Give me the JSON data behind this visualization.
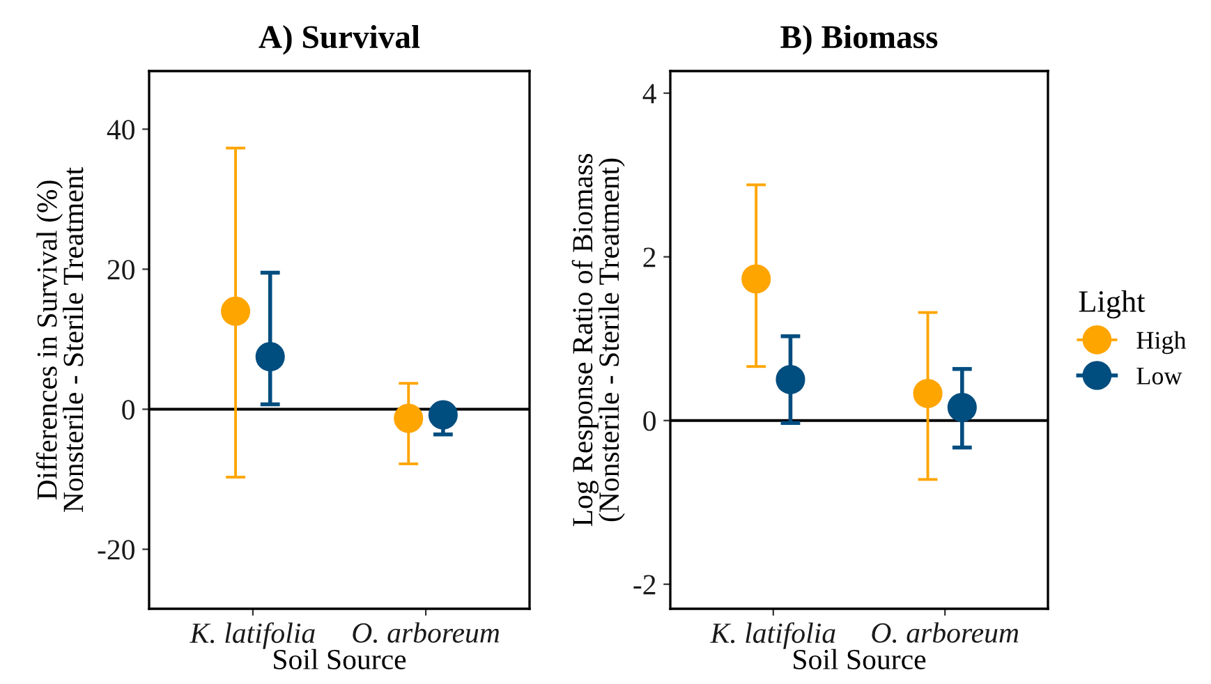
{
  "chart_data": [
    {
      "type": "scatter",
      "title": "A) Survival",
      "xlabel": "Soil Source",
      "ylabel": "Differences in Survival (%)\nNonsterile - Sterile Treatment",
      "categories": [
        "K. latifolia",
        "O. arboreum"
      ],
      "ylim": [
        -28.5,
        48.3
      ],
      "yticks": [
        {
          "value": -20,
          "label": "-20"
        },
        0,
        20,
        40
      ],
      "marker": "circle",
      "grid": false,
      "series": [
        {
          "color": "#ffa500",
          "values": [
            14,
            -1.3
          ],
          "errors": [
            [
              -9.7,
              37.3
            ],
            [
              -7.8,
              3.7
            ]
          ]
        },
        {
          "color": "#004d7f",
          "values": [
            7.5,
            -0.8
          ],
          "errors": [
            [
              0.7,
              19.5
            ],
            [
              -3.6,
              -0.8
            ]
          ]
        }
      ],
      "ref_lines": [
        {
          "axis": "y",
          "value": 0,
          "color": "#000000"
        }
      ]
    },
    {
      "type": "scatter",
      "title": "B) Biomass",
      "xlabel": "Soil Source",
      "ylabel": "Log Response Ratio of Biomass\n(Nonsterile - Sterile Treatment)",
      "categories": [
        "K. latifolia",
        "O. arboreum"
      ],
      "ylim": [
        -2.3,
        4.27
      ],
      "yticks": [
        {
          "value": -2,
          "label": "-2"
        },
        0,
        2,
        4
      ],
      "marker": "circle",
      "grid": false,
      "legend": "right",
      "legend_title": "Light",
      "series": [
        {
          "name": "High",
          "color": "#ffa500",
          "values": [
            1.73,
            0.33
          ],
          "errors": [
            [
              0.66,
              2.88
            ],
            [
              -0.72,
              1.32
            ]
          ]
        },
        {
          "name": "Low",
          "color": "#004d7f",
          "values": [
            0.5,
            0.16
          ],
          "errors": [
            [
              -0.03,
              1.03
            ],
            [
              -0.33,
              0.63
            ]
          ]
        }
      ],
      "ref_lines": [
        {
          "axis": "y",
          "value": 0,
          "color": "#000000"
        }
      ]
    }
  ]
}
